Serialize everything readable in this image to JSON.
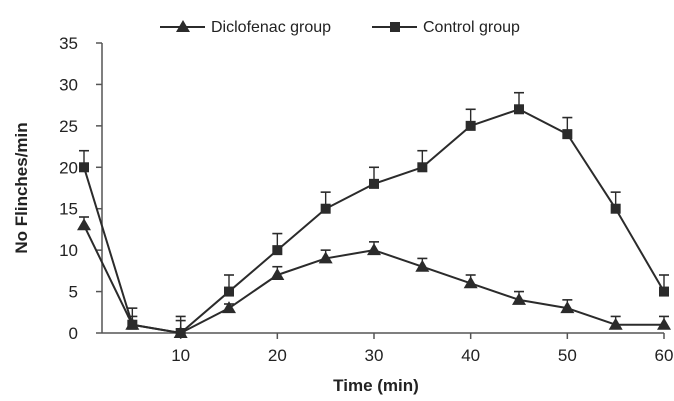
{
  "chart_data": {
    "type": "line",
    "title": "",
    "xlabel": "Time (min)",
    "ylabel": "No Flinches/min",
    "x": [
      0,
      5,
      10,
      15,
      20,
      25,
      30,
      35,
      40,
      45,
      50,
      55,
      60
    ],
    "xlim": [
      0,
      60
    ],
    "ylim": [
      0,
      35
    ],
    "x_ticks": [
      10,
      20,
      30,
      40,
      50,
      60
    ],
    "y_ticks": [
      0,
      5,
      10,
      15,
      20,
      25,
      30,
      35
    ],
    "grid": false,
    "legend_position": "top",
    "series": [
      {
        "name": "Diclofenac group",
        "marker": "triangle",
        "values": [
          13,
          1,
          0,
          3,
          7,
          9,
          10,
          8,
          6,
          4,
          3,
          1,
          1
        ],
        "error": [
          1,
          1,
          1.5,
          0.5,
          1,
          1,
          1,
          1,
          1,
          1,
          1,
          1,
          1
        ]
      },
      {
        "name": "Control group",
        "marker": "square",
        "values": [
          20,
          1,
          0,
          5,
          10,
          15,
          18,
          20,
          25,
          27,
          24,
          15,
          5
        ],
        "error": [
          2,
          2,
          2,
          2,
          2,
          2,
          2,
          2,
          2,
          2,
          2,
          2,
          2
        ]
      }
    ],
    "colors": {
      "line": "#2b2b2b",
      "axis": "#555555"
    }
  }
}
